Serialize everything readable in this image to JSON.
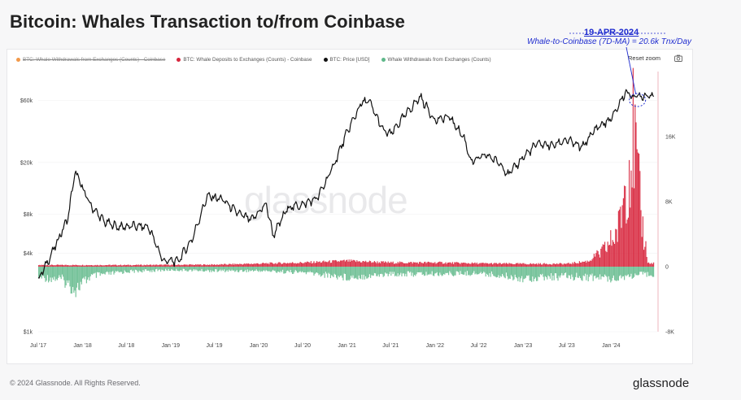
{
  "title": "Bitcoin: Whales Transaction to/from Coinbase",
  "annotation": {
    "date": "19-APR-2024",
    "text": "Whale-to-Coinbase (7D-MA) = 20.6k Tnx/Day"
  },
  "toolbar": {
    "reset_zoom": "Reset zoom",
    "camera_icon": "camera-icon"
  },
  "legend": [
    {
      "label": "BTC: Whale Withdrawals from Exchanges (Counts) - Coinbase",
      "color": "#f2994a",
      "disabled": true
    },
    {
      "label": "BTC: Whale Deposits to Exchanges (Counts) - Coinbase",
      "color": "#d7263d",
      "disabled": false
    },
    {
      "label": "BTC: Price [USD]",
      "color": "#111111",
      "disabled": false
    },
    {
      "label": "Whale Withdrawals from Exchanges (Counts)",
      "color": "#5fb88a",
      "disabled": false
    }
  ],
  "watermark": "glassnode",
  "footer": {
    "copyright": "© 2024 Glassnode. All Rights Reserved.",
    "logo": "glassnode"
  },
  "chart_data": {
    "type": "line",
    "title": "Bitcoin: Whales Transaction to/from Coinbase",
    "x_ticks": [
      "Jul '17",
      "Jan '18",
      "Jul '18",
      "Jan '19",
      "Jul '19",
      "Jan '20",
      "Jul '20",
      "Jan '21",
      "Jul '21",
      "Jan '22",
      "Jul '22",
      "Jan '23",
      "Jul '23",
      "Jan '24"
    ],
    "y_left": {
      "scale": "log",
      "ticks": [
        "$1k",
        "$4k",
        "$8k",
        "$20k",
        "$60k"
      ],
      "tick_values": [
        1000,
        4000,
        8000,
        20000,
        60000
      ],
      "range": [
        1000,
        100000
      ]
    },
    "y_right": {
      "ticks": [
        "-8K",
        "0",
        "8K",
        "16K"
      ],
      "tick_values": [
        -8000,
        0,
        8000,
        16000
      ],
      "range": [
        -8000,
        24000
      ]
    },
    "series": [
      {
        "name": "BTC: Price [USD]",
        "color": "#111111",
        "axis": "left",
        "dates": [
          "2017-07",
          "2017-09",
          "2017-11",
          "2017-12",
          "2018-02",
          "2018-04",
          "2018-06",
          "2018-08",
          "2018-10",
          "2018-12",
          "2019-02",
          "2019-04",
          "2019-06",
          "2019-08",
          "2019-10",
          "2019-12",
          "2020-02",
          "2020-03",
          "2020-05",
          "2020-07",
          "2020-09",
          "2020-11",
          "2021-01",
          "2021-03",
          "2021-04",
          "2021-06",
          "2021-07",
          "2021-09",
          "2021-11",
          "2022-01",
          "2022-03",
          "2022-05",
          "2022-06",
          "2022-08",
          "2022-10",
          "2022-11",
          "2023-01",
          "2023-03",
          "2023-05",
          "2023-07",
          "2023-09",
          "2023-11",
          "2024-01",
          "2024-03",
          "2024-04",
          "2024-06"
        ],
        "values": [
          2500,
          4200,
          7500,
          17000,
          9500,
          7000,
          6400,
          6500,
          6400,
          3500,
          3500,
          5200,
          11000,
          10500,
          8300,
          7200,
          9600,
          5500,
          9000,
          9500,
          10700,
          18000,
          34000,
          57000,
          60000,
          35000,
          33000,
          47000,
          64000,
          42000,
          45000,
          31000,
          20000,
          23000,
          19500,
          16000,
          22000,
          28000,
          27000,
          30000,
          26000,
          37000,
          43000,
          70000,
          64000,
          66000
        ]
      },
      {
        "name": "BTC: Whale Deposits to Exchanges (Counts) - Coinbase",
        "color": "#d7263d",
        "axis": "right",
        "dates": [
          "2017-07",
          "2018-07",
          "2019-07",
          "2020-07",
          "2021-01",
          "2021-07",
          "2022-01",
          "2022-07",
          "2023-01",
          "2023-07",
          "2023-10",
          "2023-12",
          "2024-01",
          "2024-02",
          "2024-03",
          "2024-04",
          "2024-05",
          "2024-06"
        ],
        "values": [
          200,
          200,
          250,
          500,
          700,
          500,
          500,
          400,
          350,
          350,
          700,
          2500,
          4000,
          6000,
          14000,
          20600,
          8000,
          500
        ]
      },
      {
        "name": "Whale Withdrawals from Exchanges (Counts)",
        "color": "#5fb88a",
        "axis": "right",
        "dates": [
          "2017-07",
          "2017-10",
          "2017-12",
          "2018-02",
          "2018-07",
          "2019-01",
          "2019-07",
          "2020-01",
          "2020-07",
          "2021-01",
          "2021-07",
          "2022-01",
          "2022-07",
          "2023-01",
          "2023-07",
          "2024-01",
          "2024-06"
        ],
        "values": [
          -1300,
          -1500,
          -2800,
          -1200,
          -600,
          -400,
          -500,
          -500,
          -700,
          -1300,
          -900,
          -900,
          -800,
          -1400,
          -1200,
          -1400,
          -900
        ]
      }
    ],
    "watermark": "glassnode"
  }
}
